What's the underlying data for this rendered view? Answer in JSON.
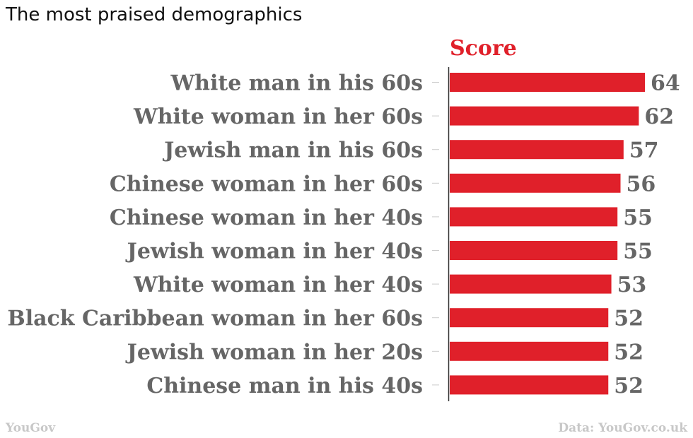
{
  "title": "The most praised demographics",
  "chart_data": {
    "type": "bar",
    "orientation": "horizontal",
    "series": [
      {
        "name": "Score",
        "values": [
          64,
          62,
          57,
          56,
          55,
          55,
          53,
          52,
          52,
          52
        ]
      }
    ],
    "categories": [
      "White man in his 60s",
      "White woman in her 60s",
      "Jewish man in his 60s",
      "Chinese woman in her 60s",
      "Chinese woman in her 40s",
      "Jewish woman in her 40s",
      "White woman in her 40s",
      "Black Caribbean woman in her 60s",
      "Jewish woman in her 20s",
      "Chinese man in his 40s"
    ],
    "xlim": [
      0,
      64
    ],
    "grid": false,
    "bar_color": "#e0202a",
    "label_color": "#666666"
  },
  "footer": {
    "left": "YouGov",
    "right": "Data: YouGov.co.uk"
  }
}
